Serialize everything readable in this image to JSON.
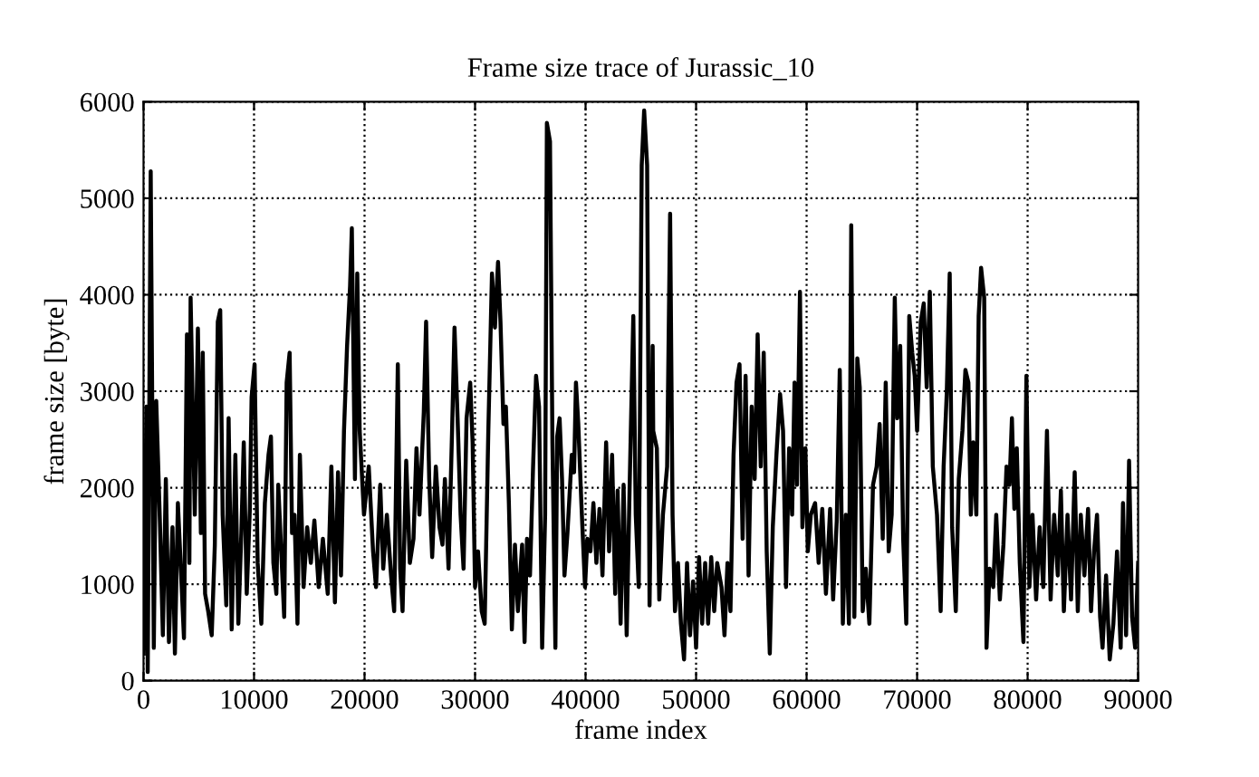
{
  "chart_data": {
    "type": "line",
    "title": "Frame size trace of Jurassic_10",
    "xlabel": "frame index",
    "ylabel": "frame size [byte]",
    "xlim": [
      0,
      90000
    ],
    "ylim": [
      0,
      6000
    ],
    "xticks": [
      0,
      10000,
      20000,
      30000,
      40000,
      50000,
      60000,
      70000,
      80000,
      90000
    ],
    "yticks": [
      0,
      1000,
      2000,
      3000,
      4000,
      5000,
      6000
    ],
    "grid": true,
    "marker": "none",
    "line_style": "solid",
    "series": [
      {
        "color": "#000000",
        "x": [
          0,
          270,
          380,
          650,
          930,
          1150,
          1480,
          1750,
          2020,
          2300,
          2620,
          2840,
          3110,
          3660,
          3930,
          4150,
          4260,
          4640,
          4920,
          5190,
          5360,
          5570,
          5850,
          6170,
          6450,
          6720,
          6940,
          7160,
          7490,
          7700,
          7980,
          8310,
          8580,
          8850,
          9070,
          9340,
          9620,
          9780,
          10050,
          10330,
          10660,
          10980,
          11310,
          11530,
          11750,
          12020,
          12190,
          12460,
          12730,
          12950,
          13220,
          13440,
          13660,
          13930,
          14150,
          14480,
          14810,
          15140,
          15460,
          15850,
          16230,
          16670,
          17000,
          17320,
          17600,
          17870,
          18140,
          18420,
          18690,
          18850,
          19130,
          19340,
          19560,
          19950,
          20380,
          20770,
          21040,
          21420,
          21690,
          22020,
          22400,
          22680,
          23010,
          23220,
          23440,
          23770,
          24100,
          24430,
          24700,
          24970,
          25360,
          25570,
          25850,
          26120,
          26450,
          26780,
          27050,
          27270,
          27600,
          27920,
          28140,
          28420,
          28690,
          28960,
          29230,
          29560,
          29780,
          30000,
          30270,
          30600,
          30870,
          31200,
          31530,
          31800,
          32080,
          32300,
          32570,
          32790,
          33060,
          33330,
          33610,
          33880,
          34260,
          34480,
          34700,
          34970,
          35250,
          35520,
          35790,
          36070,
          36340,
          36500,
          36780,
          37000,
          37270,
          37430,
          37650,
          37870,
          38090,
          38360,
          38750,
          38960,
          39130,
          39340,
          39620,
          39950,
          40160,
          40440,
          40710,
          40980,
          41260,
          41530,
          41860,
          42130,
          42400,
          42680,
          42900,
          43170,
          43440,
          43720,
          43990,
          44320,
          44540,
          44810,
          45080,
          45300,
          45570,
          45790,
          46070,
          46120,
          46450,
          46670,
          47000,
          47380,
          47650,
          47870,
          48090,
          48360,
          48630,
          48910,
          49180,
          49450,
          49730,
          50000,
          50270,
          50550,
          50820,
          51090,
          51370,
          51640,
          51910,
          52300,
          52570,
          52840,
          53110,
          53390,
          53660,
          53930,
          54210,
          54480,
          54750,
          55030,
          55300,
          55570,
          55850,
          56120,
          56390,
          56670,
          56940,
          57270,
          57600,
          57870,
          58140,
          58420,
          58690,
          58910,
          59130,
          59400,
          59620,
          59890,
          60110,
          60380,
          60770,
          61090,
          61420,
          61750,
          62130,
          62400,
          62730,
          63000,
          63280,
          63550,
          63830,
          64040,
          64320,
          64590,
          64810,
          65080,
          65360,
          65680,
          66010,
          66340,
          66610,
          66890,
          67160,
          67430,
          67700,
          67980,
          68200,
          68470,
          68740,
          69020,
          69290,
          69560,
          69780,
          70000,
          70330,
          70600,
          70870,
          71150,
          71420,
          71800,
          72130,
          72400,
          72680,
          72950,
          73170,
          73500,
          73770,
          74100,
          74370,
          74640,
          74860,
          75080,
          75360,
          75570,
          75790,
          76070,
          76280,
          76560,
          76890,
          77160,
          77490,
          77810,
          78090,
          78360,
          78580,
          78800,
          79020,
          79290,
          79620,
          79890,
          80160,
          80440,
          80770,
          81090,
          81420,
          81750,
          82080,
          82400,
          82730,
          83010,
          83280,
          83610,
          83930,
          84260,
          84540,
          84810,
          85140,
          85470,
          85740,
          86010,
          86280,
          86560,
          86780,
          87100,
          87430,
          87760,
          88090,
          88420,
          88630,
          88910,
          89180,
          89450,
          89730,
          90000
        ],
        "values": [
          280,
          2840,
          90,
          5280,
          340,
          2900,
          1650,
          470,
          2090,
          400,
          1590,
          280,
          1840,
          440,
          3590,
          1220,
          3970,
          1720,
          3650,
          1530,
          3400,
          900,
          720,
          470,
          1400,
          3720,
          3840,
          1720,
          780,
          2720,
          530,
          2340,
          590,
          1530,
          2470,
          900,
          1780,
          2940,
          3280,
          1220,
          590,
          1840,
          2340,
          2530,
          1220,
          900,
          2030,
          1340,
          660,
          3090,
          3400,
          1530,
          1720,
          590,
          2340,
          970,
          1590,
          1220,
          1660,
          970,
          1470,
          900,
          2220,
          810,
          2160,
          1090,
          2590,
          3470,
          4090,
          4690,
          2090,
          4220,
          2590,
          1720,
          2220,
          1340,
          970,
          2030,
          1160,
          1720,
          1090,
          720,
          3280,
          1160,
          720,
          2280,
          1220,
          1470,
          2410,
          1720,
          2780,
          3720,
          2090,
          1280,
          2220,
          1590,
          1410,
          2090,
          1160,
          2590,
          3660,
          2720,
          1720,
          1160,
          2720,
          3090,
          2470,
          970,
          1340,
          720,
          590,
          2590,
          4220,
          3660,
          4340,
          3720,
          2660,
          2840,
          1840,
          530,
          1410,
          720,
          1410,
          400,
          1470,
          1090,
          2220,
          3160,
          2840,
          340,
          1720,
          5780,
          5590,
          2470,
          340,
          2530,
          2720,
          2090,
          1090,
          1530,
          2340,
          2160,
          3090,
          2660,
          1840,
          970,
          1470,
          1340,
          1840,
          1220,
          1780,
          1090,
          2470,
          1340,
          2340,
          900,
          1970,
          590,
          2030,
          470,
          2030,
          3780,
          1720,
          970,
          5340,
          5910,
          5340,
          780,
          3470,
          2590,
          2410,
          840,
          1720,
          2220,
          4840,
          1720,
          720,
          1220,
          590,
          220,
          1220,
          470,
          1030,
          340,
          1280,
          590,
          1220,
          590,
          1280,
          720,
          1220,
          970,
          470,
          1220,
          720,
          2340,
          3090,
          3280,
          1470,
          3160,
          1090,
          2840,
          2090,
          3590,
          2220,
          3400,
          1340,
          280,
          1590,
          2340,
          2970,
          2590,
          970,
          2410,
          1720,
          3090,
          2030,
          4030,
          1590,
          2410,
          1340,
          1720,
          1840,
          1220,
          1780,
          900,
          1780,
          840,
          1660,
          3220,
          590,
          1720,
          590,
          4720,
          660,
          3340,
          3040,
          720,
          1160,
          590,
          2030,
          2220,
          2660,
          1470,
          3090,
          1340,
          1720,
          3970,
          2720,
          3470,
          1470,
          590,
          3780,
          3400,
          3160,
          2590,
          3720,
          3910,
          3040,
          4030,
          2220,
          1720,
          720,
          2220,
          2970,
          4220,
          1590,
          720,
          2090,
          2590,
          3220,
          3090,
          1720,
          2470,
          1720,
          3780,
          4280,
          3970,
          340,
          1160,
          970,
          1720,
          840,
          1410,
          2220,
          2030,
          2720,
          1780,
          2410,
          1220,
          400,
          3160,
          970,
          1720,
          840,
          1590,
          970,
          2590,
          840,
          1720,
          1090,
          1970,
          720,
          1720,
          840,
          2160,
          720,
          1720,
          1090,
          1780,
          720,
          1340,
          1720,
          660,
          340,
          1090,
          220,
          590,
          1340,
          340,
          1840,
          470,
          2280,
          660,
          340,
          1220
        ]
      }
    ]
  }
}
